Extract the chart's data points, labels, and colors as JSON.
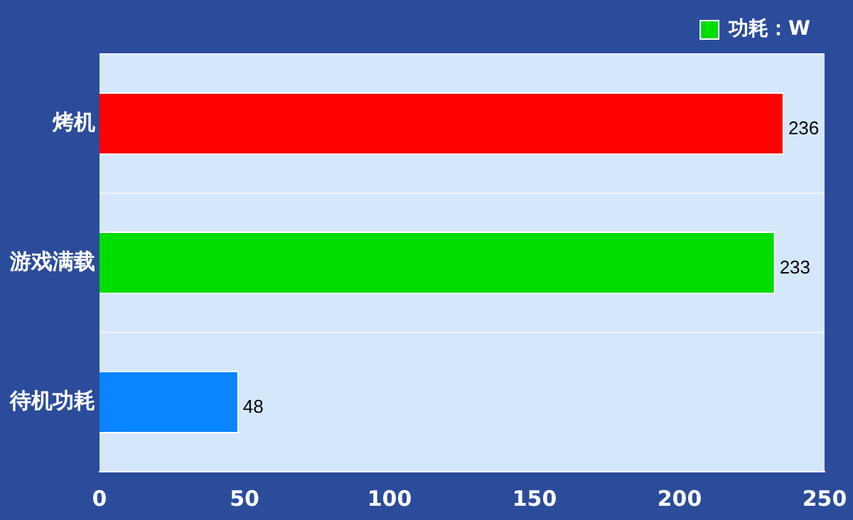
{
  "chart_data": {
    "type": "bar",
    "orientation": "horizontal",
    "categories": [
      "烤机",
      "游戏满载",
      "待机功耗"
    ],
    "series": [
      {
        "name": "功耗：W",
        "color": "#00dd00",
        "colors": [
          "#ff0000",
          "#00dd00",
          "#0a84ff"
        ],
        "values": [
          236,
          233,
          48
        ]
      }
    ],
    "xlim": [
      0,
      250
    ],
    "xticks": [
      0,
      50,
      100,
      150,
      200,
      250
    ],
    "grid": "y",
    "legend": "top right",
    "data_labels": true
  }
}
